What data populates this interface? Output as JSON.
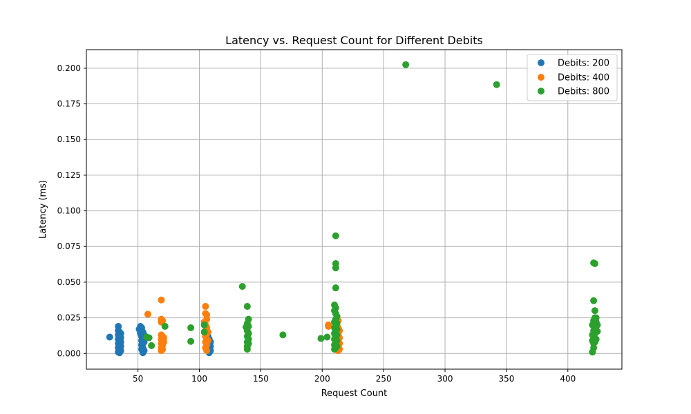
{
  "chart_data": {
    "type": "scatter",
    "title": "Latency vs. Request Count for Different Debits",
    "xlabel": "Request Count",
    "ylabel": "Latency (ms)",
    "xlim": [
      8,
      444
    ],
    "ylim": [
      -0.011,
      0.213
    ],
    "x_ticks": [
      50,
      100,
      150,
      200,
      250,
      300,
      350,
      400
    ],
    "y_ticks": [
      0.0,
      0.025,
      0.05,
      0.075,
      0.1,
      0.125,
      0.15,
      0.175,
      0.2
    ],
    "x_tick_labels": [
      "50",
      "100",
      "150",
      "200",
      "250",
      "300",
      "350",
      "400"
    ],
    "y_tick_labels": [
      "0.000",
      "0.025",
      "0.050",
      "0.075",
      "0.100",
      "0.125",
      "0.150",
      "0.175",
      "0.200"
    ],
    "grid": true,
    "legend_position": "top-right",
    "series": [
      {
        "name": "Debits: 200",
        "color": "#1f77b4",
        "points": [
          [
            27,
            0.0115
          ],
          [
            34,
            0.019
          ],
          [
            34,
            0.016
          ],
          [
            34,
            0.013
          ],
          [
            34,
            0.01
          ],
          [
            34,
            0.007
          ],
          [
            34,
            0.004
          ],
          [
            34,
            0.001
          ],
          [
            35,
            0.015
          ],
          [
            35,
            0.012
          ],
          [
            35,
            0.009
          ],
          [
            35,
            0.006
          ],
          [
            35,
            0.003
          ],
          [
            35,
            0.0005
          ],
          [
            36,
            0.014
          ],
          [
            36,
            0.011
          ],
          [
            36,
            0.008
          ],
          [
            36,
            0.005
          ],
          [
            36,
            0.002
          ],
          [
            51,
            0.017
          ],
          [
            52,
            0.019
          ],
          [
            52,
            0.014
          ],
          [
            53,
            0.018
          ],
          [
            53,
            0.012
          ],
          [
            53,
            0.009
          ],
          [
            53,
            0.006
          ],
          [
            53,
            0.003
          ],
          [
            54,
            0.015
          ],
          [
            54,
            0.01
          ],
          [
            54,
            0.007
          ],
          [
            54,
            0.004
          ],
          [
            54,
            0.0005
          ],
          [
            55,
            0.013
          ],
          [
            55,
            0.008
          ],
          [
            55,
            0.002
          ],
          [
            106,
            0.014
          ],
          [
            106,
            0.011
          ],
          [
            107,
            0.012
          ],
          [
            107,
            0.009
          ],
          [
            107,
            0.006
          ],
          [
            107,
            0.003
          ],
          [
            108,
            0.01
          ],
          [
            108,
            0.007
          ],
          [
            108,
            0.004
          ],
          [
            108,
            0.001
          ],
          [
            108,
            0.0005
          ],
          [
            109,
            0.008
          ],
          [
            109,
            0.005
          ],
          [
            109,
            0.002
          ]
        ]
      },
      {
        "name": "Debits: 400",
        "color": "#ff7f0e",
        "points": [
          [
            58,
            0.0275
          ],
          [
            69,
            0.0375
          ],
          [
            69,
            0.024
          ],
          [
            69,
            0.022
          ],
          [
            69,
            0.013
          ],
          [
            69,
            0.01
          ],
          [
            69,
            0.007
          ],
          [
            69,
            0.004
          ],
          [
            69,
            0.002
          ],
          [
            70,
            0.023
          ],
          [
            70,
            0.012
          ],
          [
            70,
            0.009
          ],
          [
            70,
            0.006
          ],
          [
            70,
            0.003
          ],
          [
            71,
            0.011
          ],
          [
            71,
            0.008
          ],
          [
            104,
            0.022
          ],
          [
            105,
            0.033
          ],
          [
            105,
            0.028
          ],
          [
            105,
            0.02
          ],
          [
            105,
            0.016
          ],
          [
            105,
            0.012
          ],
          [
            105,
            0.008
          ],
          [
            105,
            0.004
          ],
          [
            106,
            0.027
          ],
          [
            106,
            0.024
          ],
          [
            106,
            0.018
          ],
          [
            106,
            0.014
          ],
          [
            106,
            0.01
          ],
          [
            106,
            0.006
          ],
          [
            106,
            0.002
          ],
          [
            107,
            0.015
          ],
          [
            107,
            0.009
          ],
          [
            205,
            0.02
          ],
          [
            205,
            0.019
          ],
          [
            213,
            0.023
          ],
          [
            213,
            0.018
          ],
          [
            213,
            0.013
          ],
          [
            213,
            0.009
          ],
          [
            213,
            0.005
          ],
          [
            213,
            0.002
          ],
          [
            214,
            0.016
          ],
          [
            214,
            0.011
          ],
          [
            214,
            0.007
          ],
          [
            214,
            0.003
          ]
        ]
      },
      {
        "name": "Debits: 800",
        "color": "#2ca02c",
        "points": [
          [
            57,
            0.0115
          ],
          [
            59,
            0.011
          ],
          [
            61,
            0.0055
          ],
          [
            72,
            0.019
          ],
          [
            93,
            0.018
          ],
          [
            93,
            0.0085
          ],
          [
            104,
            0.02
          ],
          [
            104,
            0.015
          ],
          [
            135,
            0.047
          ],
          [
            138,
            0.0185
          ],
          [
            139,
            0.033
          ],
          [
            139,
            0.021
          ],
          [
            139,
            0.016
          ],
          [
            139,
            0.012
          ],
          [
            139,
            0.008
          ],
          [
            139,
            0.005
          ],
          [
            139,
            0.003
          ],
          [
            140,
            0.024
          ],
          [
            140,
            0.019
          ],
          [
            140,
            0.014
          ],
          [
            140,
            0.01
          ],
          [
            140,
            0.007
          ],
          [
            168,
            0.013
          ],
          [
            199,
            0.0105
          ],
          [
            204,
            0.0115
          ],
          [
            210,
            0.034
          ],
          [
            210,
            0.03
          ],
          [
            210,
            0.022
          ],
          [
            210,
            0.018
          ],
          [
            210,
            0.014
          ],
          [
            210,
            0.01
          ],
          [
            210,
            0.006
          ],
          [
            210,
            0.003
          ],
          [
            211,
            0.0825
          ],
          [
            211,
            0.063
          ],
          [
            211,
            0.06
          ],
          [
            211,
            0.046
          ],
          [
            211,
            0.032
          ],
          [
            211,
            0.028
          ],
          [
            211,
            0.024
          ],
          [
            211,
            0.02
          ],
          [
            211,
            0.016
          ],
          [
            211,
            0.012
          ],
          [
            211,
            0.008
          ],
          [
            211,
            0.004
          ],
          [
            212,
            0.026
          ],
          [
            212,
            0.021
          ],
          [
            212,
            0.017
          ],
          [
            212,
            0.013
          ],
          [
            212,
            0.009
          ],
          [
            212,
            0.005
          ],
          [
            268,
            0.2025
          ],
          [
            342,
            0.1885
          ],
          [
            420,
            0.02
          ],
          [
            420,
            0.013
          ],
          [
            420,
            0.009
          ],
          [
            420,
            0.001
          ],
          [
            421,
            0.0635
          ],
          [
            421,
            0.037
          ],
          [
            421,
            0.023
          ],
          [
            421,
            0.016
          ],
          [
            421,
            0.011
          ],
          [
            421,
            0.007
          ],
          [
            421,
            0.004
          ],
          [
            422,
            0.063
          ],
          [
            422,
            0.03
          ],
          [
            422,
            0.025
          ],
          [
            422,
            0.018
          ],
          [
            422,
            0.014
          ],
          [
            422,
            0.008
          ],
          [
            423,
            0.025
          ],
          [
            423,
            0.022
          ],
          [
            423,
            0.019
          ],
          [
            423,
            0.01
          ],
          [
            424,
            0.02
          ],
          [
            424,
            0.0155
          ]
        ]
      }
    ]
  }
}
